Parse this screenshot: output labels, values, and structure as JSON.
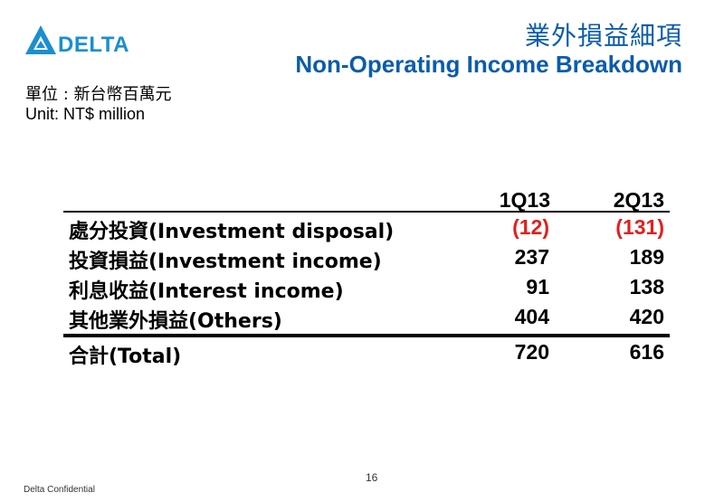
{
  "logo": {
    "text": "DELTA"
  },
  "title": {
    "cn": "業外損益細項",
    "en": "Non-Operating Income Breakdown"
  },
  "unit": {
    "cn": "單位 : 新台幣百萬元",
    "en": "Unit: NT$ million"
  },
  "table": {
    "columns": [
      "1Q13",
      "2Q13"
    ],
    "rows": [
      {
        "label": "處分投資(Investment disposal)",
        "v1": "(12)",
        "v2": "(131)"
      },
      {
        "label": "投資損益(Investment income)",
        "v1": "237",
        "v2": "189"
      },
      {
        "label": "利息收益(Interest income)",
        "v1": "91",
        "v2": "138"
      },
      {
        "label": "其他業外損益(Others)",
        "v1": "404",
        "v2": "420"
      }
    ],
    "total": {
      "label": "合計(Total)",
      "v1": "720",
      "v2": "616"
    }
  },
  "colors": {
    "brand": "#1a8fd0",
    "title": "#0b5cab",
    "negative": "#e0201f"
  },
  "footer": {
    "page": "16",
    "confidential": "Delta Confidential"
  }
}
